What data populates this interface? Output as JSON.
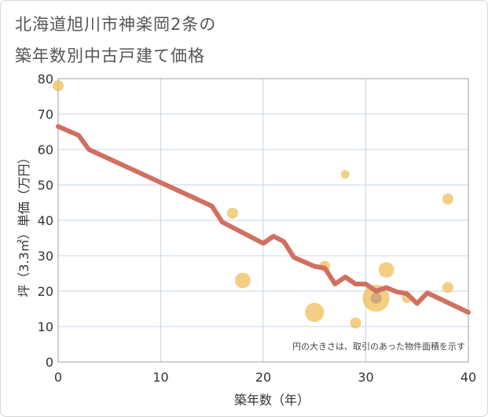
{
  "chart_data": {
    "type": "scatter",
    "title_lines": [
      "北海道旭川市神楽岡2条の",
      "築年数別中古戸建て価格"
    ],
    "xlabel": "築年数（年）",
    "ylabel": "坪（3.3㎡）単価（万円）",
    "xlim": [
      0,
      40
    ],
    "ylim": [
      0,
      80
    ],
    "xticks": [
      0,
      10,
      20,
      30,
      40
    ],
    "yticks": [
      0,
      10,
      20,
      30,
      40,
      50,
      60,
      70,
      80
    ],
    "grid": true,
    "annotation": "円の大きさは、取引のあった物件面積を示す",
    "scatter_points": [
      {
        "x": 0,
        "y": 78,
        "size": 1
      },
      {
        "x": 17,
        "y": 42,
        "size": 1
      },
      {
        "x": 18,
        "y": 23,
        "size": 2
      },
      {
        "x": 25,
        "y": 14,
        "size": 3
      },
      {
        "x": 26,
        "y": 27,
        "size": 1
      },
      {
        "x": 28,
        "y": 53,
        "size": 0.6
      },
      {
        "x": 29,
        "y": 11,
        "size": 1
      },
      {
        "x": 31,
        "y": 18,
        "size": 6
      },
      {
        "x": 31,
        "y": 18,
        "size": 1
      },
      {
        "x": 32,
        "y": 26,
        "size": 2
      },
      {
        "x": 34,
        "y": 18,
        "size": 0.8
      },
      {
        "x": 38,
        "y": 46,
        "size": 1
      },
      {
        "x": 38,
        "y": 21,
        "size": 1
      }
    ],
    "trend_line": {
      "x": [
        0,
        2,
        3,
        15,
        16,
        20,
        21,
        22,
        23,
        25,
        26,
        27,
        28,
        29,
        30,
        31,
        32,
        33,
        34,
        35,
        36,
        40
      ],
      "y": [
        66.5,
        64,
        60,
        44,
        39.5,
        33.5,
        35.5,
        34,
        29.5,
        27,
        26.5,
        22,
        24,
        22,
        22,
        20,
        21,
        19.8,
        19.3,
        16.5,
        19.5,
        14
      ]
    },
    "colors": {
      "bubble": "#f0b950",
      "bubble_highlight": "#c8a27a",
      "line": "#d07060",
      "grid": "#c7d6e6",
      "frame": "#9aa3ad"
    }
  }
}
